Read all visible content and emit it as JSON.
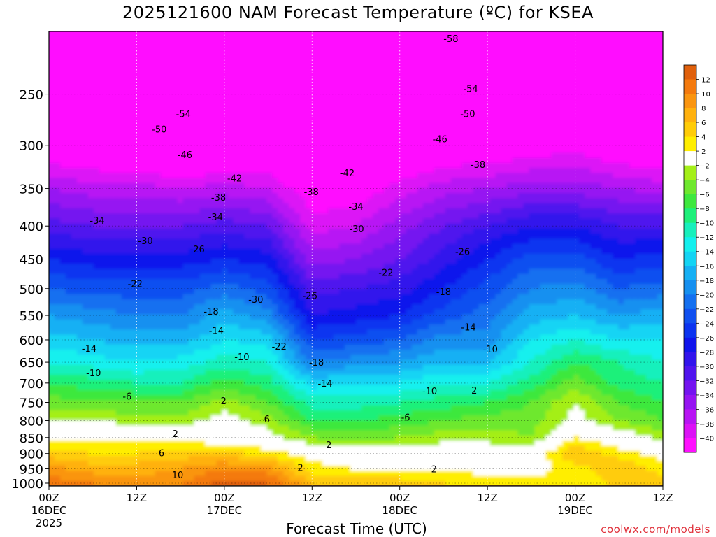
{
  "chart_data": {
    "type": "heatmap",
    "title": "2025121600 NAM Forecast Temperature (ºC) for KSEA",
    "xlabel": "Forecast Time (UTC)",
    "ylabel": "",
    "credit": "coolwx.com/models",
    "y_axis": {
      "scale": "log",
      "reversed": true,
      "range": [
        1010,
        200
      ],
      "ticks": [
        250,
        300,
        350,
        400,
        450,
        500,
        550,
        600,
        650,
        700,
        750,
        800,
        850,
        900,
        950,
        1000
      ]
    },
    "x_axis": {
      "range_hours": [
        0,
        84
      ],
      "ticks": [
        {
          "h": 0,
          "line1": "00Z",
          "line2": "16DEC",
          "line3": "2025"
        },
        {
          "h": 12,
          "line1": "12Z",
          "line2": "",
          "line3": ""
        },
        {
          "h": 24,
          "line1": "00Z",
          "line2": "17DEC",
          "line3": ""
        },
        {
          "h": 36,
          "line1": "12Z",
          "line2": "",
          "line3": ""
        },
        {
          "h": 48,
          "line1": "00Z",
          "line2": "18DEC",
          "line3": ""
        },
        {
          "h": 60,
          "line1": "12Z",
          "line2": "",
          "line3": ""
        },
        {
          "h": 72,
          "line1": "00Z",
          "line2": "19DEC",
          "line3": ""
        },
        {
          "h": 84,
          "line1": "12Z",
          "line2": "",
          "line3": ""
        }
      ]
    },
    "grid": true,
    "isotherm_interval": 4,
    "freezing_level_contours": [
      -2,
      2
    ],
    "x_hours": [
      0,
      6,
      12,
      18,
      24,
      30,
      36,
      42,
      48,
      54,
      60,
      66,
      72,
      78,
      84
    ],
    "levels_hPa": [
      1000,
      950,
      900,
      850,
      800,
      750,
      700,
      650,
      600,
      550,
      500,
      450,
      400,
      350,
      300,
      250,
      200
    ],
    "temperature_C": [
      [
        11,
        10,
        9,
        10,
        13,
        12,
        6,
        5,
        5,
        4,
        3,
        3,
        2,
        5,
        5
      ],
      [
        9,
        7,
        7,
        8,
        10,
        9,
        3,
        2,
        2,
        2,
        1,
        1,
        3,
        6,
        3
      ],
      [
        5,
        4,
        4,
        5,
        5,
        3,
        1,
        0,
        0,
        0,
        0,
        0,
        6,
        3,
        1
      ],
      [
        1,
        1,
        1,
        1,
        0,
        -1,
        -4,
        -5,
        -4,
        -3,
        -3,
        -4,
        2,
        0,
        -3
      ],
      [
        -2,
        -2,
        -3,
        -3,
        -1,
        -3,
        -8,
        -8,
        -7,
        -6,
        -5,
        -5,
        -1,
        -4,
        -6
      ],
      [
        -5,
        -6,
        -6,
        -6,
        -3,
        -6,
        -11,
        -11,
        -10,
        -9,
        -8,
        -6,
        -2,
        -6,
        -8
      ],
      [
        -8,
        -9,
        -10,
        -10,
        -7,
        -9,
        -15,
        -14,
        -14,
        -12,
        -12,
        -9,
        -5,
        -9,
        -10
      ],
      [
        -12,
        -13,
        -14,
        -13,
        -11,
        -12,
        -20,
        -19,
        -18,
        -16,
        -16,
        -12,
        -8,
        -10,
        -12
      ],
      [
        -15,
        -16,
        -17,
        -17,
        -14,
        -15,
        -24,
        -23,
        -22,
        -19,
        -19,
        -14,
        -12,
        -14,
        -14
      ],
      [
        -18,
        -19,
        -20,
        -20,
        -17,
        -19,
        -28,
        -27,
        -26,
        -23,
        -21,
        -17,
        -16,
        -18,
        -17
      ],
      [
        -22,
        -23,
        -23,
        -23,
        -21,
        -23,
        -31,
        -30,
        -29,
        -26,
        -23,
        -20,
        -19,
        -22,
        -21
      ],
      [
        -26,
        -27,
        -27,
        -27,
        -26,
        -27,
        -35,
        -34,
        -32,
        -29,
        -26,
        -23,
        -23,
        -26,
        -25
      ],
      [
        -31,
        -32,
        -32,
        -32,
        -31,
        -32,
        -39,
        -38,
        -35,
        -32,
        -30,
        -28,
        -28,
        -30,
        -30
      ],
      [
        -36,
        -37,
        -37,
        -38,
        -37,
        -38,
        -42,
        -42,
        -39,
        -37,
        -36,
        -35,
        -35,
        -36,
        -37
      ],
      [
        -43,
        -44,
        -45,
        -46,
        -46,
        -44,
        -46,
        -47,
        -45,
        -43,
        -43,
        -42,
        -41,
        -43,
        -44
      ],
      [
        -50,
        -51,
        -52,
        -53,
        -54,
        -51,
        -52,
        -54,
        -52,
        -51,
        -52,
        -50,
        -50,
        -53,
        -54
      ],
      [
        -55,
        -56,
        -57,
        -58,
        -60,
        -58,
        -58,
        -60,
        -59,
        -57,
        -58,
        -57,
        -57,
        -59,
        -60
      ]
    ],
    "contour_labels": [
      {
        "h": 55.0,
        "p": 205,
        "text": "-58"
      },
      {
        "h": 57.7,
        "p": 245,
        "text": "-54"
      },
      {
        "h": 57.3,
        "p": 268,
        "text": "-50"
      },
      {
        "h": 53.5,
        "p": 293,
        "text": "-46"
      },
      {
        "h": 58.7,
        "p": 321,
        "text": "-38"
      },
      {
        "h": 40.8,
        "p": 331,
        "text": "-42"
      },
      {
        "h": 18.4,
        "p": 268,
        "text": "-54"
      },
      {
        "h": 15.1,
        "p": 283,
        "text": "-50"
      },
      {
        "h": 18.6,
        "p": 310,
        "text": "-46"
      },
      {
        "h": 25.4,
        "p": 337,
        "text": "-42"
      },
      {
        "h": 23.2,
        "p": 361,
        "text": "-38"
      },
      {
        "h": 35.9,
        "p": 354,
        "text": "-38"
      },
      {
        "h": 42.0,
        "p": 373,
        "text": "-34"
      },
      {
        "h": 22.8,
        "p": 387,
        "text": "-34"
      },
      {
        "h": 6.6,
        "p": 392,
        "text": "-34"
      },
      {
        "h": 13.2,
        "p": 421,
        "text": "-30"
      },
      {
        "h": 42.1,
        "p": 404,
        "text": "-30"
      },
      {
        "h": 20.3,
        "p": 434,
        "text": "-26"
      },
      {
        "h": 56.6,
        "p": 438,
        "text": "-26"
      },
      {
        "h": 46.1,
        "p": 472,
        "text": "-22"
      },
      {
        "h": 11.8,
        "p": 491,
        "text": "-22"
      },
      {
        "h": 54.0,
        "p": 505,
        "text": "-18"
      },
      {
        "h": 28.3,
        "p": 519,
        "text": "-30"
      },
      {
        "h": 35.7,
        "p": 512,
        "text": "-26"
      },
      {
        "h": 22.2,
        "p": 542,
        "text": "-18"
      },
      {
        "h": 57.4,
        "p": 573,
        "text": "-14"
      },
      {
        "h": 22.9,
        "p": 580,
        "text": "-14"
      },
      {
        "h": 31.5,
        "p": 614,
        "text": "-22"
      },
      {
        "h": 5.5,
        "p": 618,
        "text": "-14"
      },
      {
        "h": 26.4,
        "p": 637,
        "text": "-10"
      },
      {
        "h": 36.6,
        "p": 650,
        "text": "-18"
      },
      {
        "h": 60.4,
        "p": 620,
        "text": "-10"
      },
      {
        "h": 6.1,
        "p": 675,
        "text": "-10"
      },
      {
        "h": 37.8,
        "p": 700,
        "text": "-14"
      },
      {
        "h": 10.7,
        "p": 733,
        "text": "-6"
      },
      {
        "h": 52.1,
        "p": 720,
        "text": "-10"
      },
      {
        "h": 23.9,
        "p": 745,
        "text": "2"
      },
      {
        "h": 58.2,
        "p": 718,
        "text": "2"
      },
      {
        "h": 29.6,
        "p": 795,
        "text": "-6"
      },
      {
        "h": 48.8,
        "p": 790,
        "text": "-6"
      },
      {
        "h": 17.3,
        "p": 838,
        "text": "2"
      },
      {
        "h": 38.3,
        "p": 872,
        "text": "2"
      },
      {
        "h": 15.4,
        "p": 897,
        "text": "6"
      },
      {
        "h": 34.4,
        "p": 945,
        "text": "2"
      },
      {
        "h": 52.7,
        "p": 950,
        "text": "2"
      },
      {
        "h": 17.6,
        "p": 970,
        "text": "10"
      }
    ],
    "colorbar": {
      "ticks": [
        12,
        10,
        8,
        6,
        4,
        2,
        -2,
        -4,
        -6,
        -8,
        -10,
        -12,
        -14,
        -16,
        -18,
        -20,
        -22,
        -24,
        -26,
        -28,
        -30,
        -32,
        -34,
        -36,
        -38,
        -40
      ],
      "bins": [
        {
          "range": [
            12,
            14
          ],
          "color": "#e0600c"
        },
        {
          "range": [
            10,
            12
          ],
          "color": "#f47a0e"
        },
        {
          "range": [
            8,
            10
          ],
          "color": "#fa9510"
        },
        {
          "range": [
            6,
            8
          ],
          "color": "#ffb10e"
        },
        {
          "range": [
            4,
            6
          ],
          "color": "#ffcc08"
        },
        {
          "range": [
            2,
            4
          ],
          "color": "#ffee00"
        },
        {
          "range": [
            -2,
            2
          ],
          "color": "#ffffff"
        },
        {
          "range": [
            -4,
            -2
          ],
          "color": "#a4ef18"
        },
        {
          "range": [
            -6,
            -4
          ],
          "color": "#6ee82e"
        },
        {
          "range": [
            -8,
            -6
          ],
          "color": "#3ee83e"
        },
        {
          "range": [
            -10,
            -8
          ],
          "color": "#1ef07a"
        },
        {
          "range": [
            -12,
            -10
          ],
          "color": "#18f0bc"
        },
        {
          "range": [
            -14,
            -12
          ],
          "color": "#14f0ee"
        },
        {
          "range": [
            -16,
            -14
          ],
          "color": "#14d4f4"
        },
        {
          "range": [
            -18,
            -16
          ],
          "color": "#16b0f4"
        },
        {
          "range": [
            -20,
            -18
          ],
          "color": "#1690f0"
        },
        {
          "range": [
            -22,
            -20
          ],
          "color": "#1470f0"
        },
        {
          "range": [
            -24,
            -22
          ],
          "color": "#1050f0"
        },
        {
          "range": [
            -26,
            -24
          ],
          "color": "#0c34f0"
        },
        {
          "range": [
            -28,
            -26
          ],
          "color": "#1014ec"
        },
        {
          "range": [
            -30,
            -28
          ],
          "color": "#3214ec"
        },
        {
          "range": [
            -32,
            -30
          ],
          "color": "#5014ee"
        },
        {
          "range": [
            -34,
            -32
          ],
          "color": "#7414f0"
        },
        {
          "range": [
            -36,
            -34
          ],
          "color": "#9614f2"
        },
        {
          "range": [
            -38,
            -36
          ],
          "color": "#b814f4"
        },
        {
          "range": [
            -40,
            -38
          ],
          "color": "#dc12f6"
        },
        {
          "range": [
            -99,
            -40
          ],
          "color": "#ff10ff"
        }
      ]
    },
    "ground_color": "#9c5a2c",
    "freezing_contour_color": "#e0207a"
  }
}
